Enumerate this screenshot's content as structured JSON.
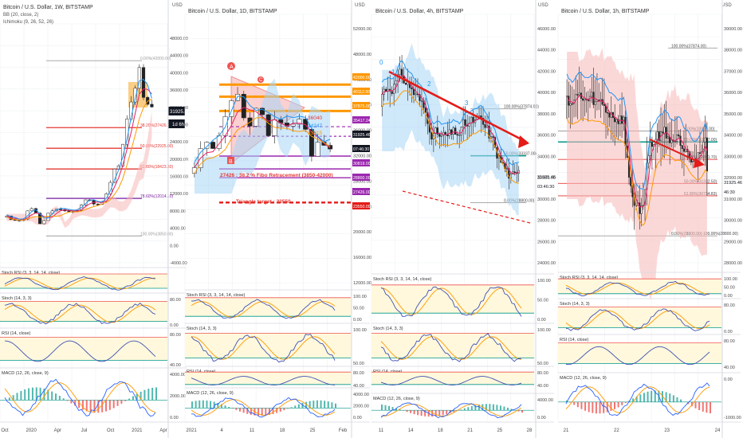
{
  "colors": {
    "grid": "#eef0f3",
    "panelBorder": "#d6d9e0",
    "axisText": "#4a4a4a",
    "up": "#26a69a",
    "down": "#ef5350",
    "candleOutline": "#222222",
    "bbBasis": "#2196f3",
    "bbUpper": "#e91e63",
    "cloudGreen": "#a7d6f5",
    "cloudRed": "#f8b8b8",
    "ichiTenkan": "#2196f3",
    "ichiKijun": "#b71c1c",
    "fib": "#e53935",
    "fib786": "#7b1fa2",
    "fibGrey": "#9e9e9e",
    "rsiBand": "#fff8dc",
    "stochK": "#3f51b5",
    "stochD": "#ff9800",
    "rsiLine": "#3f51b5",
    "macdLine": "#2962ff",
    "macdSignal": "#ff6d00",
    "histUp": "#26a69a",
    "histDown": "#ef5350",
    "orange": "#ff9800",
    "red": "#e41b17",
    "purple": "#9c27b0",
    "teal": "#009688"
  },
  "chart_data": [
    {
      "type": "candlestick",
      "title": "Bitcoin / U.S. Dollar, 1W, BITSTAMP",
      "indicators": [
        "BB (20, close, 2)",
        "Ichimoku (9, 26, 52, 26)"
      ],
      "currency": "USD",
      "y_axis_ticks": [
        "48000.00",
        "44000.00",
        "40000.00",
        "36000.00",
        "32000.00",
        "28000.00",
        "24000.00",
        "20000.00",
        "16000.00",
        "12000.00",
        "8000.00",
        "4000.00",
        "0.00",
        "-4000.00"
      ],
      "x_axis_ticks": [
        "Oct",
        "2020",
        "Apr",
        "Jul",
        "Oct",
        "2021",
        "Apr"
      ],
      "ylim": [
        -2000,
        50000
      ],
      "price_label": "31925.46",
      "timer_label": "1d 6h",
      "close_series": [
        8200,
        7400,
        7300,
        7200,
        7500,
        9300,
        9800,
        8800,
        6500,
        7200,
        8800,
        9300,
        9700,
        9600,
        9300,
        9100,
        9200,
        9400,
        10600,
        11700,
        11600,
        10800,
        10700,
        11300,
        13000,
        15500,
        18400,
        19100,
        23800,
        29300,
        33000,
        36000,
        40500,
        34000,
        32500,
        31925
      ],
      "fibonacci": [
        {
          "label": "0.00%(42000.00)",
          "value": 42000
        },
        {
          "label": "38.20%(27426.70)",
          "value": 27426.7
        },
        {
          "label": "50.00%(22925.00)",
          "value": 22925
        },
        {
          "label": "61.80%(18423.30)",
          "value": 18423.3
        },
        {
          "label": "78.60%(12014.10)",
          "value": 12014.1
        },
        {
          "label": "100.00%(3850.00)",
          "value": 3850
        }
      ],
      "sub_panels": [
        {
          "label": "Stoch RSI (3, 3, 14, 14, close)",
          "ticks": []
        },
        {
          "label": "Stoch (14, 3, 3)",
          "ticks": [
            "80.00",
            "0.00"
          ]
        },
        {
          "label": "RSI (14, close)",
          "ticks": [
            "80.00",
            "40.00"
          ]
        },
        {
          "label": "MACD (12, 26, close, 9)",
          "ticks": [
            "4000.00",
            "2000.00",
            "0.00"
          ]
        }
      ]
    },
    {
      "type": "candlestick",
      "title": "Bitcoin / U.S. Dollar, 1D, BITSTAMP",
      "currency": "USD",
      "y_axis_ticks": [
        "52000.00",
        "48000.00",
        "44000.00",
        "40000.00",
        "36000.00",
        "32000.00",
        "28000.00",
        "24000.00",
        "20000.00",
        "16000.00",
        "12000.00"
      ],
      "x_axis_ticks": [
        "2021",
        "4",
        "11",
        "18",
        "25",
        "Feb"
      ],
      "ylim": [
        11000,
        53000
      ],
      "close_series": [
        29000,
        32000,
        33000,
        32000,
        34000,
        37000,
        39500,
        40500,
        36800,
        35500,
        38300,
        37300,
        34000,
        36500,
        36000,
        35500,
        35800,
        36600,
        35000,
        30800,
        33000,
        32500,
        31925
      ],
      "right_labels": [
        "42000.00",
        "40112.00",
        "37875.00",
        "35417.24",
        "31925.46",
        "07:46:30",
        "30819.00",
        "28800.00",
        "27426.00",
        "23550.00"
      ],
      "annotations": {
        "fib_text": "27426 : 38.2 % Fibo Retracement (3850-42000)",
        "triangle_text": "Triangle target : 23550",
        "levels_labels": [
          "36040",
          "34247",
          "33915"
        ],
        "marker_a": "A",
        "marker_b": "B",
        "marker_c": "C"
      },
      "sub_panels": [
        {
          "label": "Stoch RSI (3, 3, 14, 14, close)",
          "ticks": [
            "100.00",
            "50.00",
            "0.00"
          ]
        },
        {
          "label": "Stoch (14, 3, 3)",
          "ticks": [
            "100.00",
            "50.00"
          ]
        },
        {
          "label": "RSI (14, close)",
          "ticks": [
            "80.00",
            "40.00"
          ]
        },
        {
          "label": "MACD (12, 26, close, 9)",
          "ticks": [
            "4000.00",
            "2000.00",
            "0.00"
          ]
        }
      ]
    },
    {
      "type": "candlestick",
      "title": "Bitcoin / U.S. Dollar, 4h, BITSTAMP",
      "currency": "USD",
      "y_axis_ticks": [
        "46000.00",
        "44000.00",
        "42000.00",
        "40000.00",
        "38000.00",
        "36000.00",
        "34000.00",
        "32000.00",
        "30000.00",
        "28000.00",
        "26000.00",
        "24000.00"
      ],
      "x_axis_ticks": [
        "11",
        "14",
        "18",
        "21",
        "25",
        "28"
      ],
      "ylim": [
        23000,
        47000
      ],
      "wave_labels": [
        "0",
        "1",
        "2",
        "3"
      ],
      "fibonacci": [
        {
          "label": "100.00%(37874.00)",
          "value": 37874
        },
        {
          "label": "50.00%(33337.00)",
          "value": 33337
        },
        {
          "label": "0.00%(28800.00)",
          "value": 28800
        }
      ],
      "right_labels": [
        "31925.46",
        "03:46:30"
      ],
      "sub_panels": [
        {
          "label": "Stoch RSI (3, 3, 14, 14, close)",
          "ticks": [
            "100.00",
            "50.00",
            "0.00"
          ]
        },
        {
          "label": "Stoch (14, 3, 3)",
          "ticks": [
            "100.00",
            "50.00"
          ]
        },
        {
          "label": "RSI (14, close)",
          "ticks": [
            "80.00",
            "40.00"
          ]
        },
        {
          "label": "MACD (12, 26, close, 9)",
          "ticks": [
            "4000.00",
            "0.00"
          ]
        }
      ]
    },
    {
      "type": "candlestick",
      "title": "Bitcoin / U.S. Dollar, 1h, BITSTAMP",
      "currency": "USD",
      "y_axis_ticks": [
        "39000.00",
        "38000.00",
        "37000.00",
        "36000.00",
        "35000.00",
        "34000.00",
        "33000.00",
        "32000.00",
        "31000.00",
        "30000.00",
        "29000.00",
        "28000.00"
      ],
      "x_axis_ticks": [
        "21",
        "22",
        "23",
        "24"
      ],
      "ylim": [
        27500,
        39500
      ],
      "fibonacci": [
        {
          "label": "100.00%(37874.00)",
          "value": 37874
        },
        {
          "label": "0.00%(33865.00)",
          "value": 33865
        },
        {
          "label": "50.00%(33337.00)",
          "value": 33337
        },
        {
          "label": "38.20%(32491.70)",
          "value": 32491.7
        },
        {
          "label": "50.00%(31332.50)",
          "value": 31332.5
        },
        {
          "label": "61.80%(30734.83)",
          "value": 30734.83
        },
        {
          "label": "0.00%(28800.00)-100.00%(28800.00)",
          "value": 28800
        }
      ],
      "right_labels": [
        "31925.46",
        "46:30"
      ],
      "sub_panels": [
        {
          "label": "Stoch RSI (3, 3, 14, 14, close)",
          "ticks": [
            "100.00",
            "50.00",
            "0.00"
          ]
        },
        {
          "label": "Stoch (14, 3, 3)",
          "ticks": [
            "80.00",
            "0.00"
          ]
        },
        {
          "label": "RSI (14, close)",
          "ticks": [
            "80.00",
            "40.00"
          ]
        },
        {
          "label": "MACD (12, 26, close, 9)",
          "ticks": [
            "0.00",
            "-1000.00"
          ]
        }
      ]
    }
  ]
}
